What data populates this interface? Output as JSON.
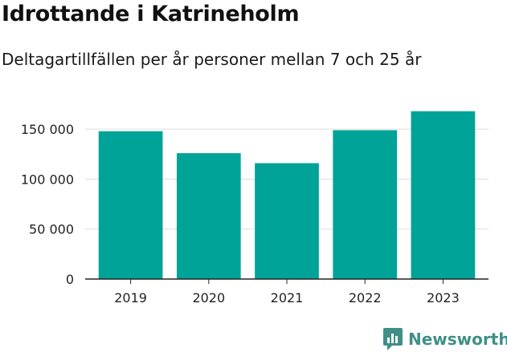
{
  "header": {
    "title": "Idrottande i Katrineholm",
    "subtitle": "Deltagartillfällen per år personer mellan 7 och 25 år"
  },
  "brand": {
    "name": "Newsworthy",
    "icon": "bar-chart-logo-icon",
    "color": "#3f8f87"
  },
  "colors": {
    "bar": "#00a398",
    "grid": "#dddddd",
    "axis": "#222222"
  },
  "chart_data": {
    "type": "bar",
    "title": "Idrottande i Katrineholm",
    "subtitle": "Deltagartillfällen per år personer mellan 7 och 25 år",
    "categories": [
      "2019",
      "2020",
      "2021",
      "2022",
      "2023"
    ],
    "values": [
      148000,
      126000,
      116000,
      149000,
      168000
    ],
    "ylim": [
      0,
      175000
    ],
    "yticks": [
      0,
      50000,
      100000,
      150000
    ],
    "ytick_labels": [
      "0",
      "50 000",
      "100 000",
      "150 000"
    ],
    "xlabel": "",
    "ylabel": "",
    "grid": true,
    "legend": "none"
  }
}
